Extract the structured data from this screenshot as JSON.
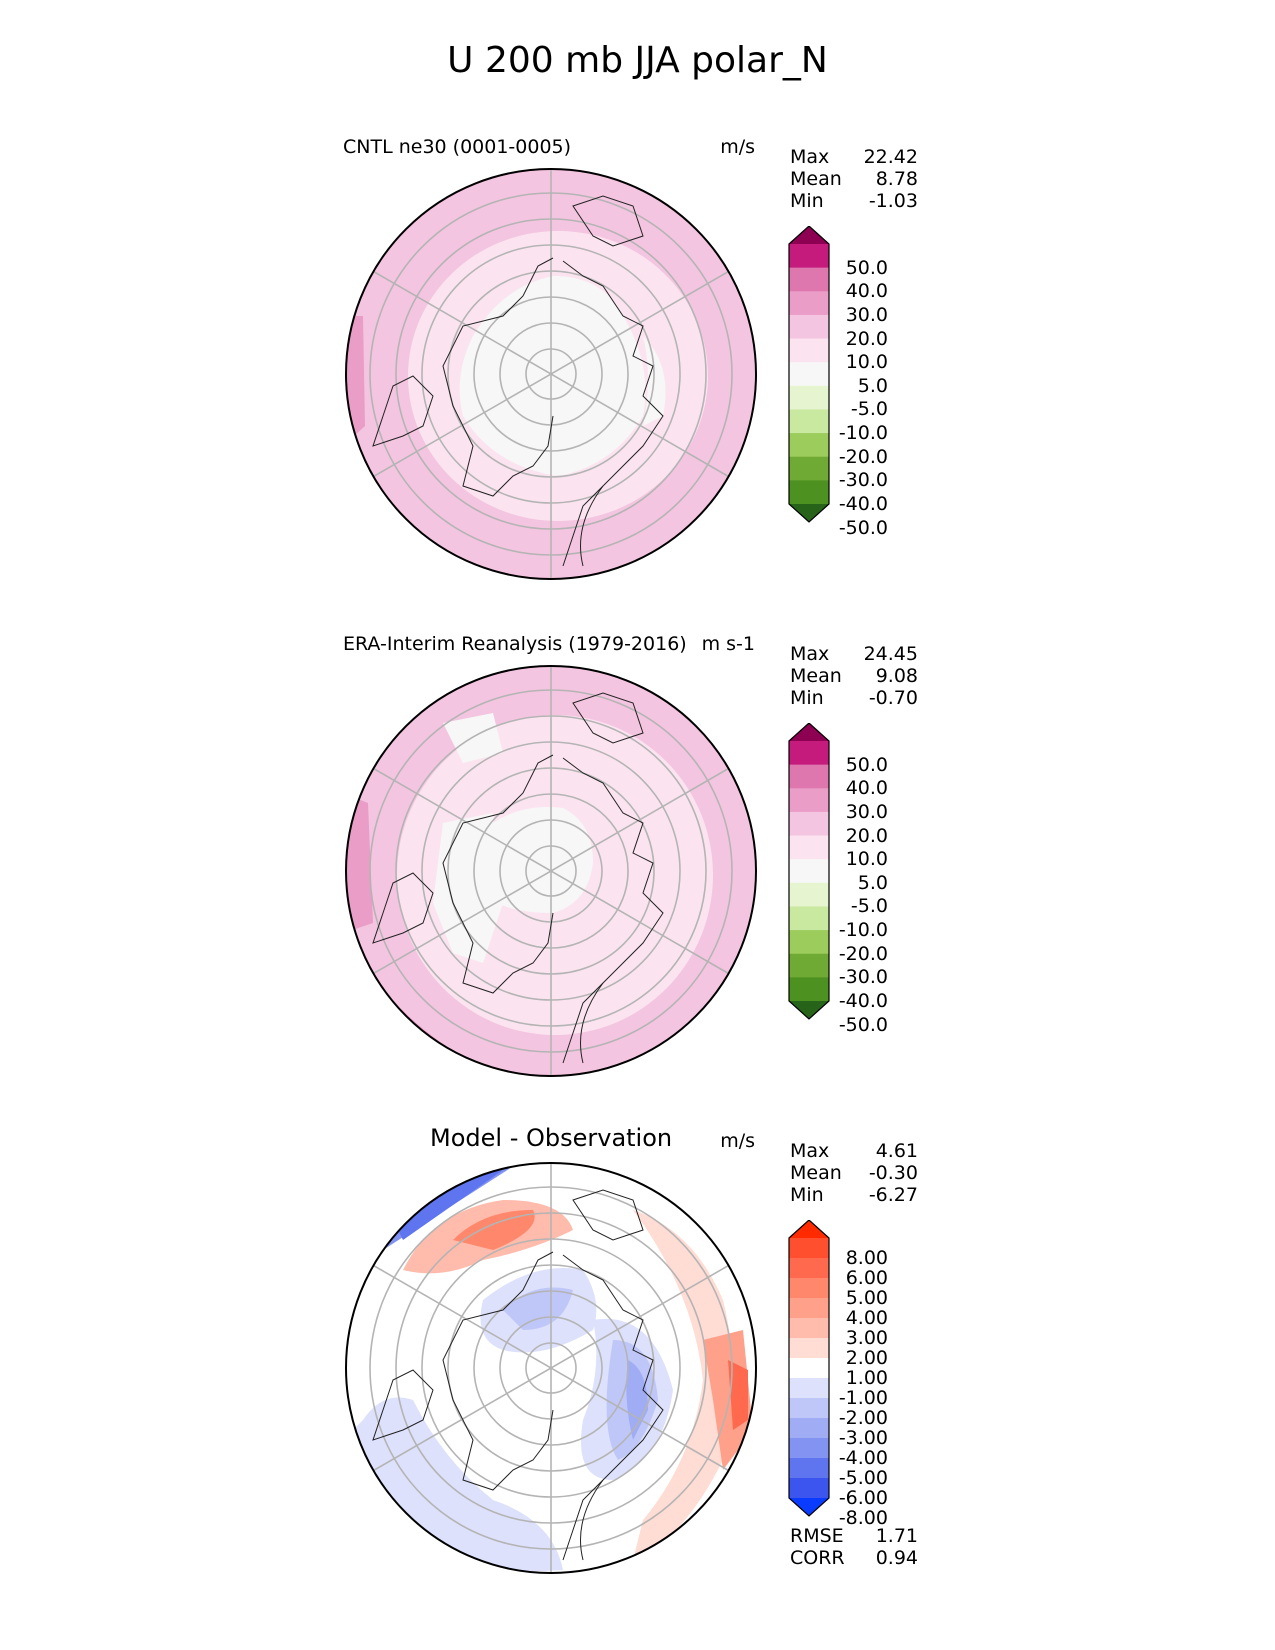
{
  "figure_title": "U 200 mb JJA polar_N",
  "panels": [
    {
      "title": "CNTL ne30 (0001-0005)",
      "units": "m/s",
      "stats": [
        {
          "label": "Max",
          "value": "22.42"
        },
        {
          "label": "Mean",
          "value": "8.78"
        },
        {
          "label": "Min",
          "value": "-1.03"
        }
      ],
      "colorbar": {
        "labels": [
          "50.0",
          "40.0",
          "30.0",
          "20.0",
          "10.0",
          "5.0",
          "-5.0",
          "-10.0",
          "-20.0",
          "-30.0",
          "-40.0",
          "-50.0"
        ],
        "colors": [
          "#8e0152",
          "#c51b7d",
          "#de77ae",
          "#e99dc7",
          "#f4c5e0",
          "#fbe4f0",
          "#f7f7f7",
          "#e6f5d0",
          "#c9e8a0",
          "#9bcc5c",
          "#6faa35",
          "#4d9221",
          "#276419"
        ]
      }
    },
    {
      "title": "ERA-Interim Reanalysis (1979-2016)",
      "units": "m s-1",
      "stats": [
        {
          "label": "Max",
          "value": "24.45"
        },
        {
          "label": "Mean",
          "value": "9.08"
        },
        {
          "label": "Min",
          "value": "-0.70"
        }
      ],
      "colorbar": {
        "labels": [
          "50.0",
          "40.0",
          "30.0",
          "20.0",
          "10.0",
          "5.0",
          "-5.0",
          "-10.0",
          "-20.0",
          "-30.0",
          "-40.0",
          "-50.0"
        ],
        "colors": [
          "#8e0152",
          "#c51b7d",
          "#de77ae",
          "#e99dc7",
          "#f4c5e0",
          "#fbe4f0",
          "#f7f7f7",
          "#e6f5d0",
          "#c9e8a0",
          "#9bcc5c",
          "#6faa35",
          "#4d9221",
          "#276419"
        ]
      }
    },
    {
      "title": "Model - Observation",
      "units": "m/s",
      "stats": [
        {
          "label": "Max",
          "value": "4.61"
        },
        {
          "label": "Mean",
          "value": "-0.30"
        },
        {
          "label": "Min",
          "value": "-6.27"
        }
      ],
      "colorbar": {
        "labels": [
          "8.00",
          "6.00",
          "5.00",
          "4.00",
          "3.00",
          "2.00",
          "1.00",
          "-1.00",
          "-2.00",
          "-3.00",
          "-4.00",
          "-5.00",
          "-6.00",
          "-8.00"
        ],
        "colors": [
          "#ff2a00",
          "#ff4f2f",
          "#ff6a4f",
          "#ff876b",
          "#ffa08a",
          "#ffbbab",
          "#ffdcd4",
          "#ffffff",
          "#dde1fb",
          "#bfc7f8",
          "#a0adf5",
          "#8293f2",
          "#5f74ef",
          "#3b55ee",
          "#0a3cff"
        ]
      },
      "error_stats": [
        {
          "label": "RMSE",
          "value": "1.71"
        },
        {
          "label": "CORR",
          "value": "0.94"
        }
      ]
    }
  ]
}
